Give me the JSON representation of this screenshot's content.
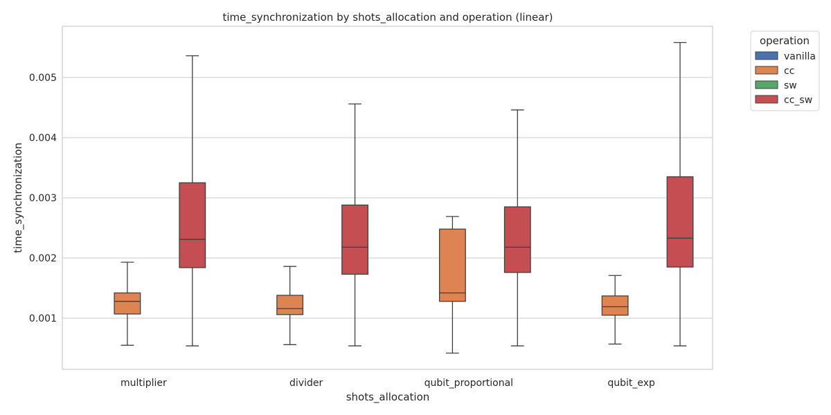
{
  "chart_data": {
    "type": "box",
    "title": "time_synchronization by shots_allocation and operation (linear)",
    "xlabel": "shots_allocation",
    "ylabel": "time_synchronization",
    "ylim": [
      0.00015,
      0.00585
    ],
    "yticks": [
      0.001,
      0.002,
      0.003,
      0.004,
      0.005
    ],
    "ytick_labels": [
      "0.001",
      "0.002",
      "0.003",
      "0.004",
      "0.005"
    ],
    "grid": "horizontal",
    "categories": [
      "multiplier",
      "divider",
      "qubit_proportional",
      "qubit_exp"
    ],
    "legend": {
      "title": "operation",
      "placement": "outside-top-right",
      "entries": [
        "vanilla",
        "cc",
        "sw",
        "cc_sw"
      ]
    },
    "series": [
      {
        "name": "vanilla",
        "color": "#4c72b0",
        "boxes": [
          null,
          null,
          null,
          null
        ]
      },
      {
        "name": "cc",
        "color": "#dd8452",
        "boxes": [
          {
            "whislo": 0.00055,
            "q1": 0.00107,
            "med": 0.00128,
            "q3": 0.00142,
            "whishi": 0.00193
          },
          {
            "whislo": 0.00056,
            "q1": 0.00106,
            "med": 0.00116,
            "q3": 0.00138,
            "whishi": 0.00186
          },
          {
            "whislo": 0.00042,
            "q1": 0.00128,
            "med": 0.00142,
            "q3": 0.00248,
            "whishi": 0.00269
          },
          {
            "whislo": 0.00057,
            "q1": 0.00105,
            "med": 0.00119,
            "q3": 0.00137,
            "whishi": 0.00171
          }
        ]
      },
      {
        "name": "sw",
        "color": "#55a868",
        "boxes": [
          null,
          null,
          null,
          null
        ]
      },
      {
        "name": "cc_sw",
        "color": "#c44e52",
        "boxes": [
          {
            "whislo": 0.00054,
            "q1": 0.00184,
            "med": 0.00231,
            "q3": 0.00325,
            "whishi": 0.00536
          },
          {
            "whislo": 0.00054,
            "q1": 0.00173,
            "med": 0.00218,
            "q3": 0.00288,
            "whishi": 0.00456
          },
          {
            "whislo": 0.00054,
            "q1": 0.00176,
            "med": 0.00218,
            "q3": 0.00285,
            "whishi": 0.00446
          },
          {
            "whislo": 0.00054,
            "q1": 0.00185,
            "med": 0.00233,
            "q3": 0.00335,
            "whishi": 0.00558
          }
        ]
      }
    ]
  }
}
